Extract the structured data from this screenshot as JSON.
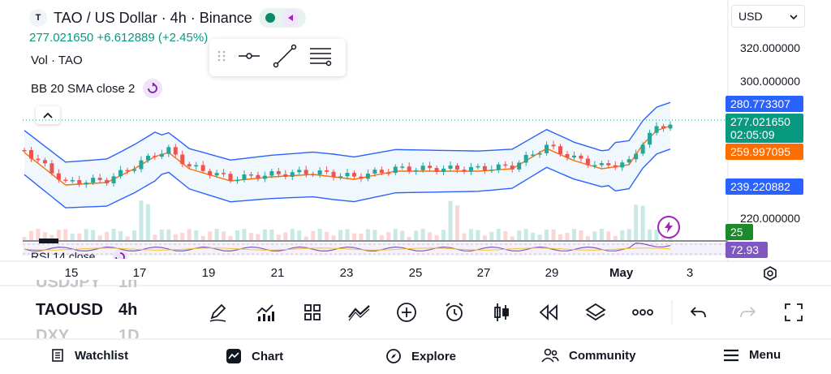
{
  "header": {
    "logo_glyph": "T",
    "title": "TAO / US Dollar · 4h · Binance",
    "price": "277.021650",
    "change": "+6.612889 (+2.45%)",
    "vol_label": "Vol · TAO",
    "bb_label": "BB 20 SMA close 2"
  },
  "currency": {
    "value": "USD"
  },
  "axis": {
    "prices": [
      "320.000000",
      "300.000000",
      "220.000000"
    ],
    "tags": {
      "upper": "280.773307",
      "last": "277.021650",
      "countdown": "02:05:09",
      "mid": "259.997095",
      "lower": "239.220882",
      "vol": "25",
      "rsi": "72.93"
    }
  },
  "rsi_label": "RSI 14 close",
  "dates": [
    "15",
    "17",
    "19",
    "21",
    "23",
    "25",
    "27",
    "29",
    "May",
    "3"
  ],
  "symbols": {
    "prev": "USDJPY",
    "prev_tf": "1h",
    "current": "TAOUSD",
    "current_tf": "4h",
    "next": "DXY",
    "next_tf": "1D"
  },
  "nav": {
    "watchlist": "Watchlist",
    "chart": "Chart",
    "explore": "Explore",
    "community": "Community",
    "menu": "Menu"
  },
  "colors": {
    "up": "#26a69a",
    "down": "#ef5350",
    "bb_band": "#2962ff",
    "bb_mid": "#ff6d00",
    "tag_blue": "#2962ff",
    "tag_green": "#089981",
    "tag_orange": "#ff6d00",
    "tag_purple": "#7e57c2",
    "tag_darkgreen": "#1b8a2a"
  }
}
